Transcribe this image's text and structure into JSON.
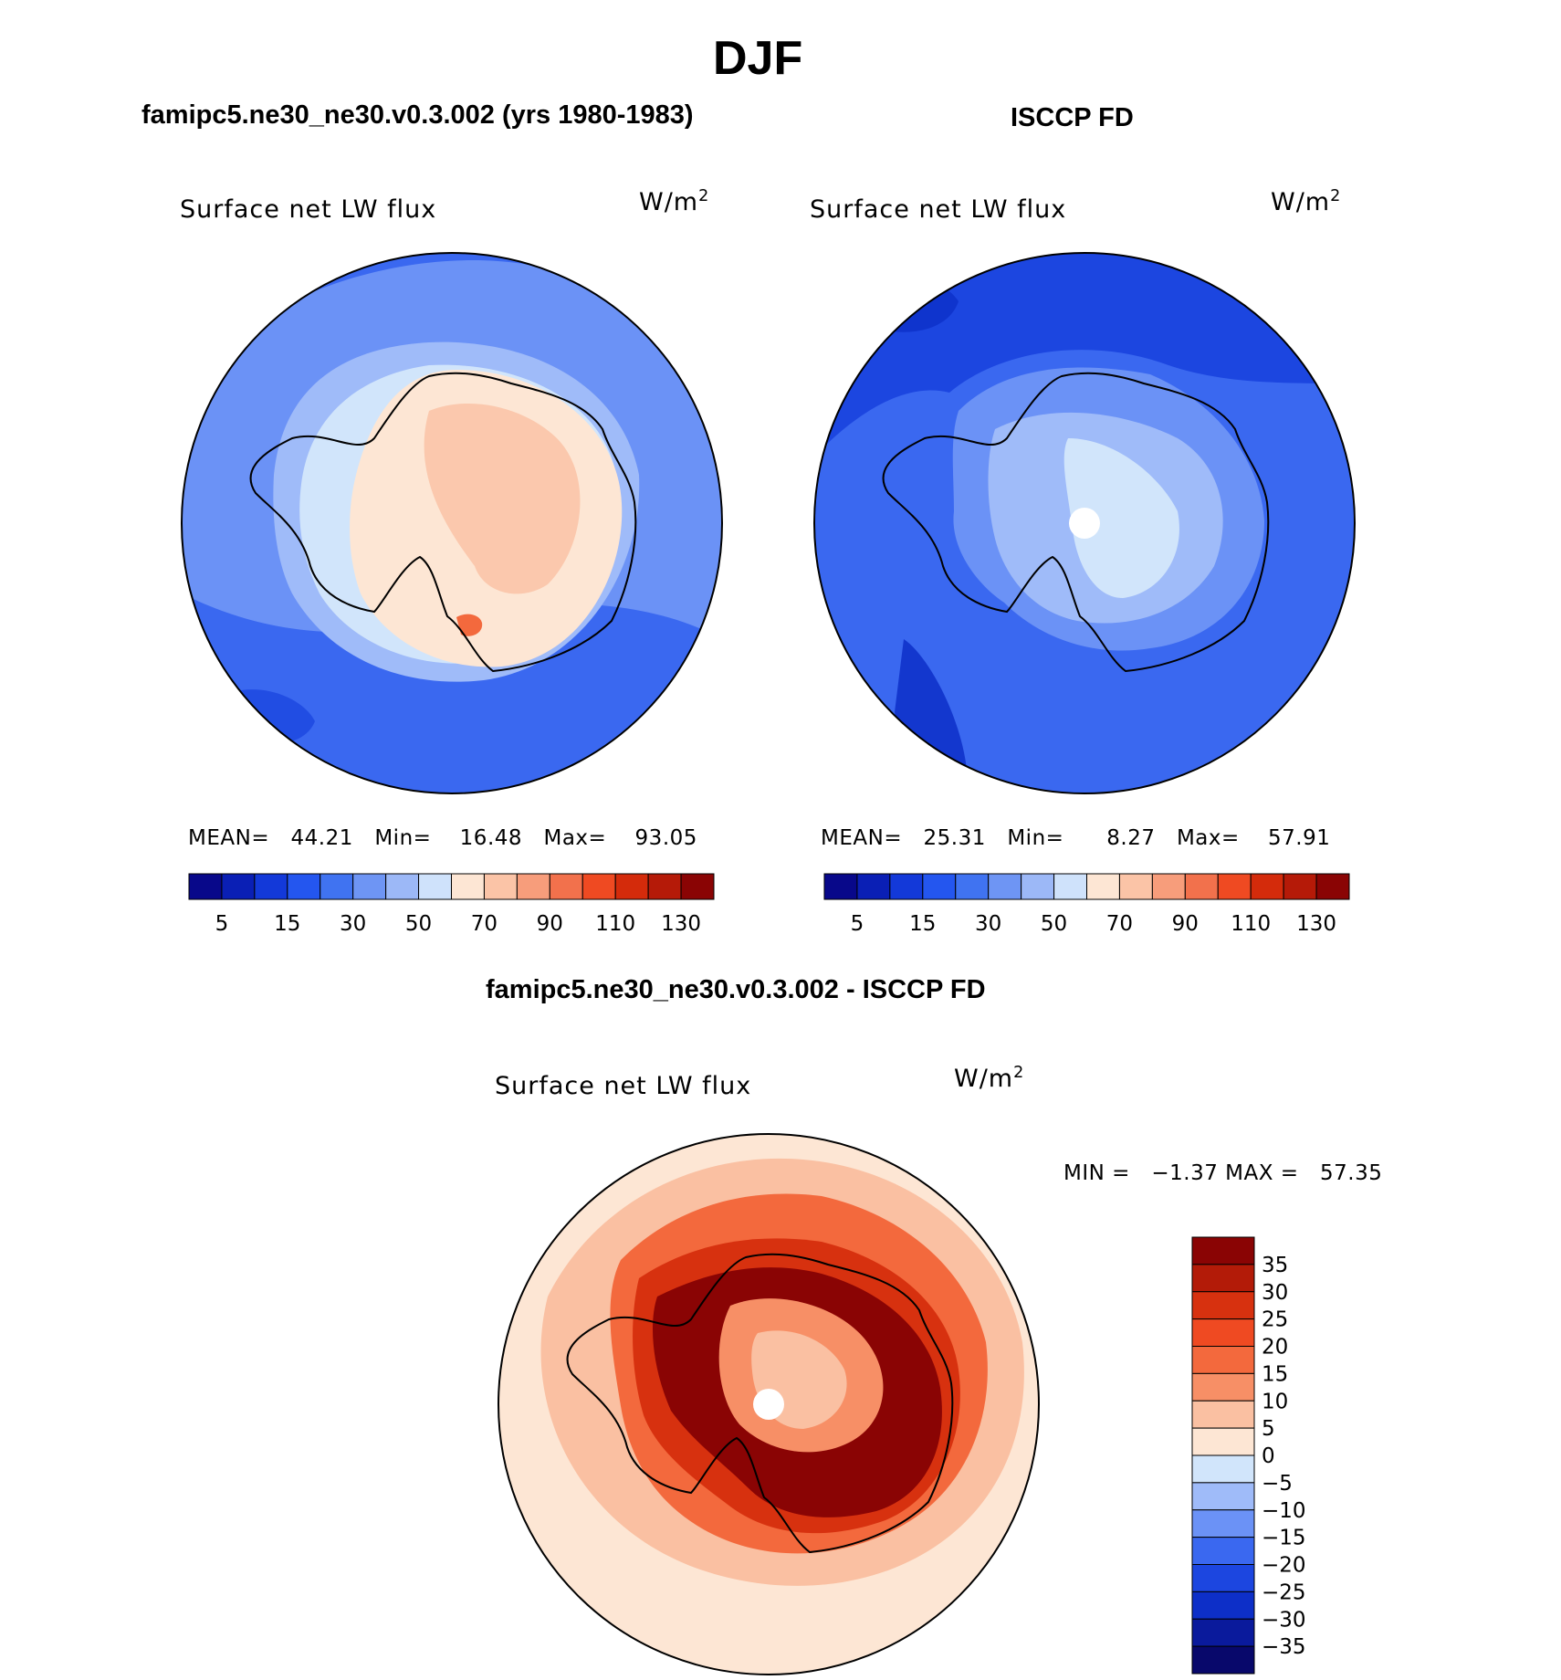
{
  "figure": {
    "title": "DJF",
    "colors": {
      "pos_scale": [
        "#08088a",
        "#0a1fb5",
        "#1339d9",
        "#2456ef",
        "#4073f1",
        "#6e95f4",
        "#9cb8f7",
        "#cfe2fb",
        "#fde6d4",
        "#fbc4a7",
        "#f79d7b",
        "#f2714c",
        "#ef4a22",
        "#d42b0b",
        "#b51a08",
        "#8a0404"
      ],
      "diff_scale": [
        "#08086b",
        "#0a1a9c",
        "#0d2fc8",
        "#1c46e0",
        "#3a68f0",
        "#6b92f6",
        "#9fbbf9",
        "#d1e5fb",
        "#fde6d4",
        "#fac0a2",
        "#f78f66",
        "#f3693d",
        "#ef4a22",
        "#d7310f",
        "#b31b08",
        "#8a0404"
      ],
      "land_outline": "#000000"
    }
  },
  "panels": [
    {
      "id": "model",
      "subtitle": "famipc5.ne30_ne30.v0.3.002 (yrs 1980-1983)",
      "variable": "Surface net LW flux",
      "unit_base": "W/m",
      "unit_exp": "2",
      "stats": {
        "mean_label": "MEAN=",
        "mean": "44.21",
        "min_label": "Min=",
        "min": "16.48",
        "max_label": "Max=",
        "max": "93.05"
      },
      "colorbar_ticks": [
        "5",
        "15",
        "30",
        "50",
        "70",
        "90",
        "110",
        "130"
      ]
    },
    {
      "id": "obs",
      "subtitle": "ISCCP FD",
      "variable": "Surface net LW flux",
      "unit_base": "W/m",
      "unit_exp": "2",
      "stats": {
        "mean_label": "MEAN=",
        "mean": "25.31",
        "min_label": "Min=",
        "min": "8.27",
        "max_label": "Max=",
        "max": "57.91"
      },
      "colorbar_ticks": [
        "5",
        "15",
        "30",
        "50",
        "70",
        "90",
        "110",
        "130"
      ]
    },
    {
      "id": "diff",
      "subtitle": "famipc5.ne30_ne30.v0.3.002 - ISCCP FD",
      "variable": "Surface net LW flux",
      "unit_base": "W/m",
      "unit_exp": "2",
      "stats": {
        "min_label": "MIN =",
        "min": "−1.37",
        "max_label": "MAX =",
        "max": "57.35"
      },
      "colorbar_ticks": [
        "35",
        "30",
        "25",
        "20",
        "15",
        "10",
        "5",
        "0",
        "−5",
        "−10",
        "−15",
        "−20",
        "−25",
        "−30",
        "−35"
      ]
    }
  ]
}
